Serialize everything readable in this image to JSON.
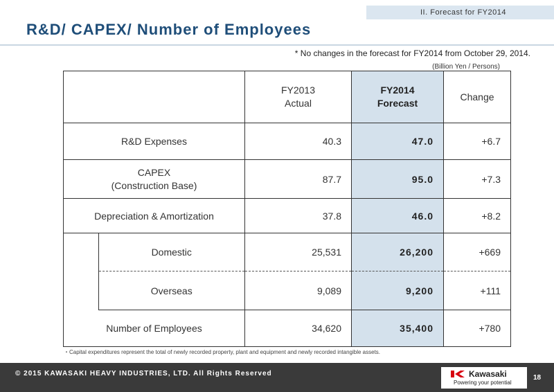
{
  "section_tag": "II.  Forecast for FY2014",
  "title": "R&D/ CAPEX/ Number of Employees",
  "note": "*  No changes in the forecast for FY2014 from October 29, 2014.",
  "unit": "(Billion Yen / Persons)",
  "table": {
    "headers": {
      "col1_line1": "FY2013",
      "col1_line2": "Actual",
      "col2_line1": "FY2014",
      "col2_line2": "Forecast",
      "col3": "Change"
    },
    "rows": [
      {
        "label": "R&D Expenses",
        "fy2013": "40.3",
        "fy2014": "47.0",
        "change": "+6.7"
      },
      {
        "label_line1": "CAPEX",
        "label_line2": "(Construction Base)",
        "fy2013": "87.7",
        "fy2014": "95.0",
        "change": "+7.3"
      },
      {
        "label": "Depreciation & Amortization",
        "fy2013": "37.8",
        "fy2014": "46.0",
        "change": "+8.2"
      },
      {
        "label": "Domestic",
        "fy2013": "25,531",
        "fy2014": "26,200",
        "change": "+669"
      },
      {
        "label": "Overseas",
        "fy2013": "9,089",
        "fy2014": "9,200",
        "change": "+111"
      },
      {
        "label": "Number of Employees",
        "fy2013": "34,620",
        "fy2014": "35,400",
        "change": "+780"
      }
    ]
  },
  "footnote": "・Capital expenditures represent the total of newly recorded property, plant and equipment and newly recorded intangible assets.",
  "footer": {
    "copyright": "© 2015 KAWASAKI HEAVY INDUSTRIES, LTD. All Rights Reserved",
    "logo_name": "Kawasaki",
    "logo_tagline": "Powering your potential",
    "page_number": "18"
  },
  "colors": {
    "title": "#1f4e79",
    "highlight": "#d4e1ec",
    "footer_bg": "#3a3a3a",
    "logo_red": "#d7000f"
  }
}
